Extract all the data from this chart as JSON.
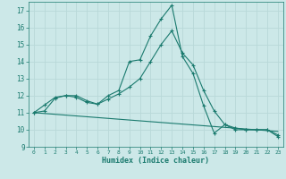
{
  "xlabel": "Humidex (Indice chaleur)",
  "bg_color": "#cce8e8",
  "grid_color": "#b8d8d8",
  "line_color": "#1a7a6e",
  "xlim": [
    -0.5,
    23.5
  ],
  "ylim": [
    9,
    17.5
  ],
  "yticks": [
    9,
    10,
    11,
    12,
    13,
    14,
    15,
    16,
    17
  ],
  "xticks": [
    0,
    1,
    2,
    3,
    4,
    5,
    6,
    7,
    8,
    9,
    10,
    11,
    12,
    13,
    14,
    15,
    16,
    17,
    18,
    19,
    20,
    21,
    22,
    23
  ],
  "series1_x": [
    0,
    1,
    2,
    3,
    4,
    5,
    6,
    7,
    8,
    9,
    10,
    11,
    12,
    13,
    14,
    15,
    16,
    17,
    18,
    19,
    20,
    21,
    22,
    23
  ],
  "series1_y": [
    11.0,
    11.45,
    11.9,
    12.0,
    12.0,
    11.7,
    11.5,
    12.0,
    12.3,
    14.0,
    14.1,
    15.5,
    16.5,
    17.3,
    14.3,
    13.3,
    11.4,
    9.8,
    10.3,
    10.0,
    10.0,
    10.0,
    10.0,
    9.6
  ],
  "series2_x": [
    0,
    1,
    2,
    3,
    4,
    5,
    6,
    7,
    8,
    9,
    10,
    11,
    12,
    13,
    14,
    15,
    16,
    17,
    18,
    19,
    20,
    21,
    22,
    23
  ],
  "series2_y": [
    11.0,
    11.1,
    11.85,
    12.0,
    11.9,
    11.6,
    11.5,
    11.8,
    12.1,
    12.5,
    13.0,
    14.0,
    15.0,
    15.8,
    14.5,
    13.8,
    12.3,
    11.1,
    10.3,
    10.1,
    10.0,
    10.0,
    10.0,
    9.7
  ],
  "series3_x": [
    0,
    23
  ],
  "series3_y": [
    11.0,
    9.9
  ]
}
